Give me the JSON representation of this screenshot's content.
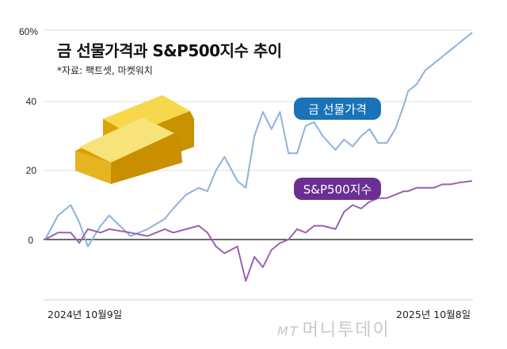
{
  "header": {
    "title": "금 선물가격과 S&P500지수 추이",
    "source": "*자료: 팩트셋, 마켓워치"
  },
  "axes": {
    "y_ticks": [
      "60%",
      "40",
      "20",
      "0"
    ],
    "x_start": "2024년 10월9일",
    "x_end": "2025년 10월8일"
  },
  "legend": {
    "gold": {
      "label": "금 선물가격",
      "color": "#1a72b8"
    },
    "sp500": {
      "label": "S&P500지수",
      "color": "#6b2f93"
    }
  },
  "watermark": {
    "mt": "MT",
    "name": "머니투데이"
  },
  "colors": {
    "gold_line": "#8db3db",
    "sp_line": "#9a62b3",
    "grid": "#e6e6e6",
    "zero": "#111111"
  },
  "chart_data": {
    "type": "line",
    "title": "금 선물가격과 S&P500지수 추이",
    "subtitle": "*자료: 팩트셋, 마켓워치",
    "xlabel": "",
    "ylabel": "%",
    "ylim": [
      -15,
      60
    ],
    "y_ticks": [
      0,
      20,
      40,
      60
    ],
    "x_range": [
      "2024-10-09",
      "2025-10-08"
    ],
    "grid": true,
    "x": [
      0,
      3,
      6,
      8,
      10,
      13,
      15,
      20,
      24,
      28,
      30,
      33,
      36,
      38,
      40,
      42,
      45,
      47,
      49,
      51,
      53,
      55,
      57,
      59,
      61,
      63,
      65,
      68,
      70,
      72,
      74,
      76,
      78,
      80,
      82,
      84,
      85,
      87,
      89,
      91,
      93,
      95,
      97,
      100
    ],
    "series": [
      {
        "name": "금 선물가격",
        "values": [
          0,
          7,
          10,
          5,
          -2,
          4,
          7,
          1,
          3,
          6,
          9,
          13,
          15,
          14,
          20,
          24,
          17,
          15,
          30,
          37,
          32,
          37,
          25,
          25,
          33,
          34,
          30,
          26,
          29,
          27,
          30,
          32,
          28,
          28,
          32,
          39,
          43,
          45,
          49,
          51,
          53,
          55,
          57,
          60
        ]
      },
      {
        "name": "S&P500지수",
        "values": [
          0,
          2,
          2,
          -1,
          3,
          2,
          3,
          2,
          1,
          3,
          2,
          3,
          4,
          2,
          -2,
          -4,
          -2,
          -12,
          -5,
          -8,
          -3,
          -1,
          0,
          3,
          2,
          4,
          4,
          3,
          8,
          10,
          9,
          11,
          12,
          12,
          13,
          14,
          14,
          15,
          15,
          15,
          16,
          16,
          16.5,
          17
        ]
      }
    ],
    "annotations": [
      "금 선물가격",
      "S&P500지수"
    ]
  }
}
